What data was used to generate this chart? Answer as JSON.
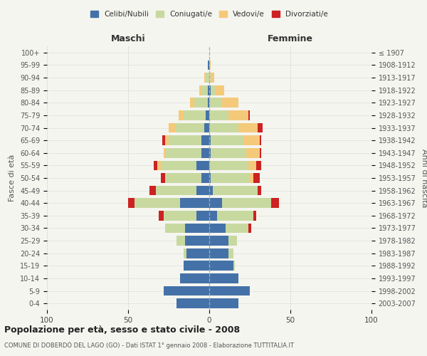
{
  "age_groups": [
    "0-4",
    "5-9",
    "10-14",
    "15-19",
    "20-24",
    "25-29",
    "30-34",
    "35-39",
    "40-44",
    "45-49",
    "50-54",
    "55-59",
    "60-64",
    "65-69",
    "70-74",
    "75-79",
    "80-84",
    "85-89",
    "90-94",
    "95-99",
    "100+"
  ],
  "birth_years": [
    "2003-2007",
    "1998-2002",
    "1993-1997",
    "1988-1992",
    "1983-1987",
    "1978-1982",
    "1973-1977",
    "1968-1972",
    "1963-1967",
    "1958-1962",
    "1953-1957",
    "1948-1952",
    "1943-1947",
    "1938-1942",
    "1933-1937",
    "1928-1932",
    "1923-1927",
    "1918-1922",
    "1913-1917",
    "1908-1912",
    "≤ 1907"
  ],
  "colors": {
    "celibi": "#4472a8",
    "coniugati": "#c8d9a0",
    "vedovi": "#f5c97a",
    "divorziati": "#cc2222"
  },
  "maschi": {
    "celibi": [
      20,
      28,
      18,
      16,
      14,
      15,
      15,
      8,
      18,
      8,
      5,
      8,
      5,
      5,
      3,
      2,
      1,
      1,
      0,
      1,
      0
    ],
    "coniugati": [
      0,
      0,
      0,
      0,
      2,
      5,
      12,
      20,
      28,
      25,
      22,
      22,
      22,
      20,
      18,
      14,
      8,
      4,
      2,
      0,
      0
    ],
    "vedovi": [
      0,
      0,
      0,
      0,
      0,
      0,
      0,
      0,
      0,
      0,
      0,
      2,
      1,
      2,
      4,
      3,
      3,
      1,
      1,
      0,
      0
    ],
    "divorziati": [
      0,
      0,
      0,
      0,
      0,
      0,
      0,
      3,
      4,
      4,
      3,
      2,
      0,
      2,
      0,
      0,
      0,
      0,
      0,
      0,
      0
    ]
  },
  "femmine": {
    "celibi": [
      18,
      25,
      18,
      15,
      12,
      12,
      10,
      5,
      8,
      2,
      1,
      0,
      1,
      1,
      0,
      0,
      0,
      1,
      0,
      0,
      0
    ],
    "coniugati": [
      0,
      0,
      0,
      1,
      3,
      5,
      14,
      22,
      30,
      28,
      24,
      24,
      22,
      20,
      18,
      12,
      8,
      3,
      1,
      0,
      0
    ],
    "vedovi": [
      0,
      0,
      0,
      0,
      0,
      0,
      0,
      0,
      0,
      0,
      2,
      5,
      8,
      10,
      12,
      12,
      10,
      5,
      2,
      1,
      0
    ],
    "divorziati": [
      0,
      0,
      0,
      0,
      0,
      0,
      2,
      2,
      5,
      2,
      4,
      3,
      1,
      1,
      3,
      1,
      0,
      0,
      0,
      0,
      0
    ]
  },
  "title": "Popolazione per età, sesso e stato civile - 2008",
  "subtitle": "COMUNE DI DOBERDÒ DEL LAGO (GO) - Dati ISTAT 1° gennaio 2008 - Elaborazione TUTTITALIA.IT",
  "ylabel_left": "Fasce di età",
  "ylabel_right": "Anni di nascita",
  "xlabel_left": "Maschi",
  "xlabel_right": "Femmine",
  "xlim": 100,
  "xtick_step": 50,
  "legend_labels": [
    "Celibi/Nubili",
    "Coniugati/e",
    "Vedovi/e",
    "Divorziati/e"
  ],
  "background_color": "#f5f5f0",
  "grid_color": "#cccccc"
}
